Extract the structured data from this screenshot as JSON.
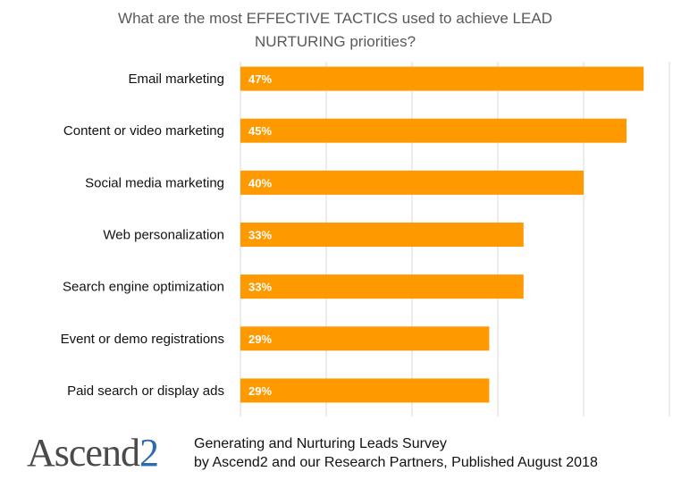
{
  "chart_data": {
    "type": "bar",
    "orientation": "horizontal",
    "title": "What are the most EFFECTIVE TACTICS used to achieve LEAD NURTURING priorities?",
    "title_lines": [
      "What are the most EFFECTIVE TACTICS used to achieve LEAD",
      "NURTURING priorities?"
    ],
    "categories": [
      "Email marketing",
      "Content or video marketing",
      "Social media marketing",
      "Web personalization",
      "Search engine optimization",
      "Event or demo registrations",
      "Paid search or display ads"
    ],
    "values": [
      47,
      45,
      40,
      33,
      33,
      29,
      29
    ],
    "data_labels": [
      "47%",
      "45%",
      "40%",
      "33%",
      "33%",
      "29%",
      "29%"
    ],
    "xlim": [
      0,
      50
    ],
    "gridlines": [
      10,
      20,
      30,
      40,
      50
    ],
    "grid": true,
    "bar_color": "#FF9900",
    "label_color": "#ffffff"
  },
  "footer": {
    "logo_main": "Ascend",
    "logo_suffix": "2",
    "line1": "Generating and Nurturing Leads Survey",
    "line2": "by Ascend2 and our Research Partners, Published August 2018"
  }
}
